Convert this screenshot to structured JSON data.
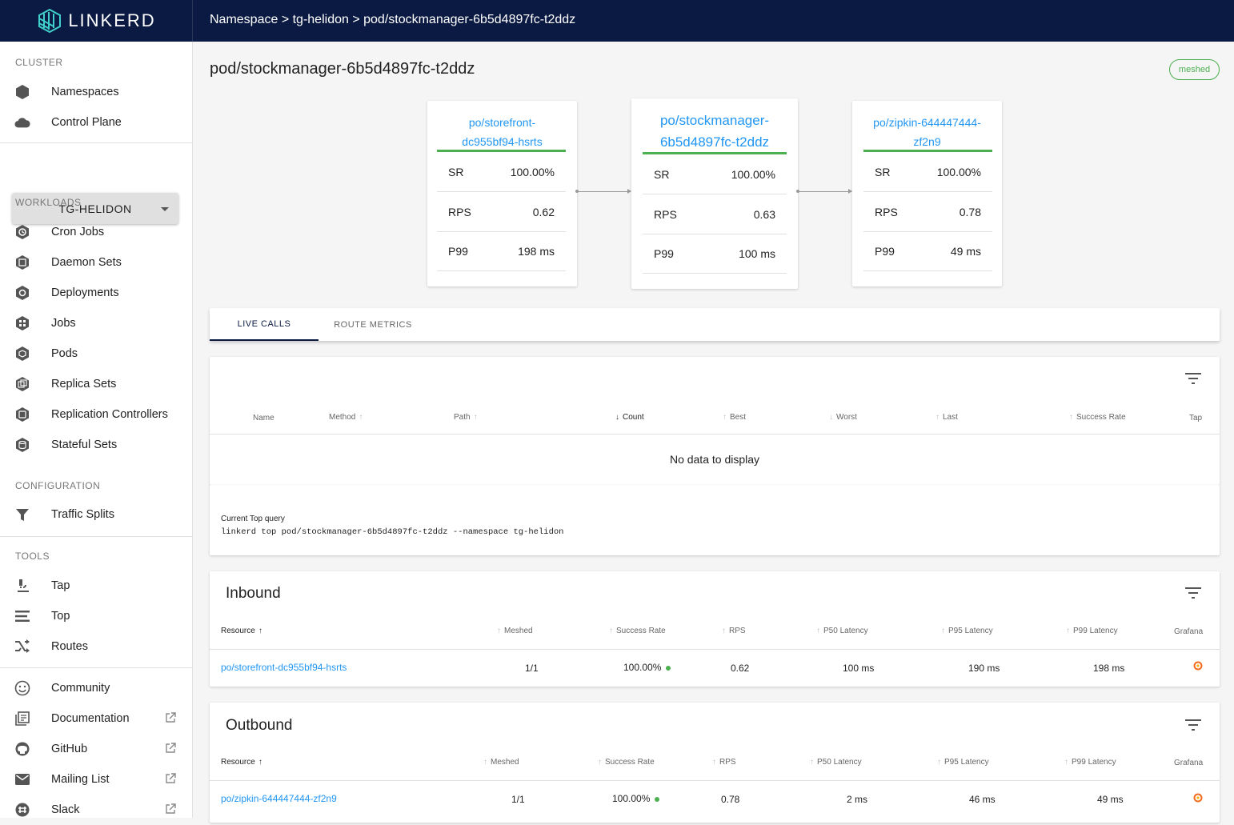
{
  "app": {
    "name": "LINKERD"
  },
  "breadcrumb": "Namespace > tg-helidon > pod/stockmanager-6b5d4897fc-t2ddz",
  "sidebar": {
    "cluster_title": "CLUSTER",
    "cluster_items": [
      {
        "label": "Namespaces",
        "icon": "namespace-icon"
      },
      {
        "label": "Control Plane",
        "icon": "cloud-icon"
      }
    ],
    "namespace_select": "TG-HELIDON",
    "workloads_title": "WORKLOADS",
    "workload_items": [
      {
        "label": "Cron Jobs"
      },
      {
        "label": "Daemon Sets"
      },
      {
        "label": "Deployments"
      },
      {
        "label": "Jobs"
      },
      {
        "label": "Pods"
      },
      {
        "label": "Replica Sets"
      },
      {
        "label": "Replication Controllers"
      },
      {
        "label": "Stateful Sets"
      }
    ],
    "config_title": "CONFIGURATION",
    "config_items": [
      {
        "label": "Traffic Splits"
      }
    ],
    "tools_title": "TOOLS",
    "tool_items": [
      {
        "label": "Tap"
      },
      {
        "label": "Top"
      },
      {
        "label": "Routes"
      }
    ],
    "help_items": [
      {
        "label": "Community"
      },
      {
        "label": "Documentation"
      },
      {
        "label": "GitHub"
      },
      {
        "label": "Mailing List"
      },
      {
        "label": "Slack"
      }
    ]
  },
  "main": {
    "title": "pod/stockmanager-6b5d4897fc-t2ddz",
    "status_badge": "meshed",
    "nodes": [
      {
        "title_1": "po/storefront-",
        "title_2": "dc955bf94-hsrts",
        "sr_label": "SR",
        "sr": "100.00%",
        "rps_label": "RPS",
        "rps": "0.62",
        "p99_label": "P99",
        "p99": "198 ms"
      },
      {
        "title_1": "po/stockmanager-",
        "title_2": "6b5d4897fc-t2ddz",
        "sr_label": "SR",
        "sr": "100.00%",
        "rps_label": "RPS",
        "rps": "0.63",
        "p99_label": "P99",
        "p99": "100 ms"
      },
      {
        "title_1": "po/zipkin-644447444-",
        "title_2": "zf2n9",
        "sr_label": "SR",
        "sr": "100.00%",
        "rps_label": "RPS",
        "rps": "0.78",
        "p99_label": "P99",
        "p99": "49 ms"
      }
    ],
    "tabs": [
      {
        "label": "LIVE CALLS"
      },
      {
        "label": "ROUTE METRICS"
      }
    ],
    "live_calls": {
      "columns": [
        "Name",
        "Method",
        "Path",
        "Count",
        "Best",
        "Worst",
        "Last",
        "Success Rate",
        "Tap"
      ],
      "empty": "No data to display",
      "query_label": "Current Top query",
      "query": "linkerd top pod/stockmanager-6b5d4897fc-t2ddz --namespace tg-helidon"
    },
    "inbound": {
      "title": "Inbound",
      "columns": [
        "Resource",
        "Meshed",
        "Success Rate",
        "RPS",
        "P50 Latency",
        "P95 Latency",
        "P99 Latency",
        "Grafana"
      ],
      "rows": [
        {
          "resource": "po/storefront-dc955bf94-hsrts",
          "meshed": "1/1",
          "success_rate": "100.00%",
          "rps": "0.62",
          "p50": "100 ms",
          "p95": "190 ms",
          "p99": "198 ms"
        }
      ]
    },
    "outbound": {
      "title": "Outbound",
      "columns": [
        "Resource",
        "Meshed",
        "Success Rate",
        "RPS",
        "P50 Latency",
        "P95 Latency",
        "P99 Latency",
        "Grafana"
      ],
      "rows": [
        {
          "resource": "po/zipkin-644447444-zf2n9",
          "meshed": "1/1",
          "success_rate": "100.00%",
          "rps": "0.78",
          "p50": "2 ms",
          "p95": "46 ms",
          "p99": "49 ms"
        }
      ]
    }
  },
  "colors": {
    "topbar": "#0b1a42",
    "accent": "#2196f3",
    "success": "#4caf50"
  }
}
